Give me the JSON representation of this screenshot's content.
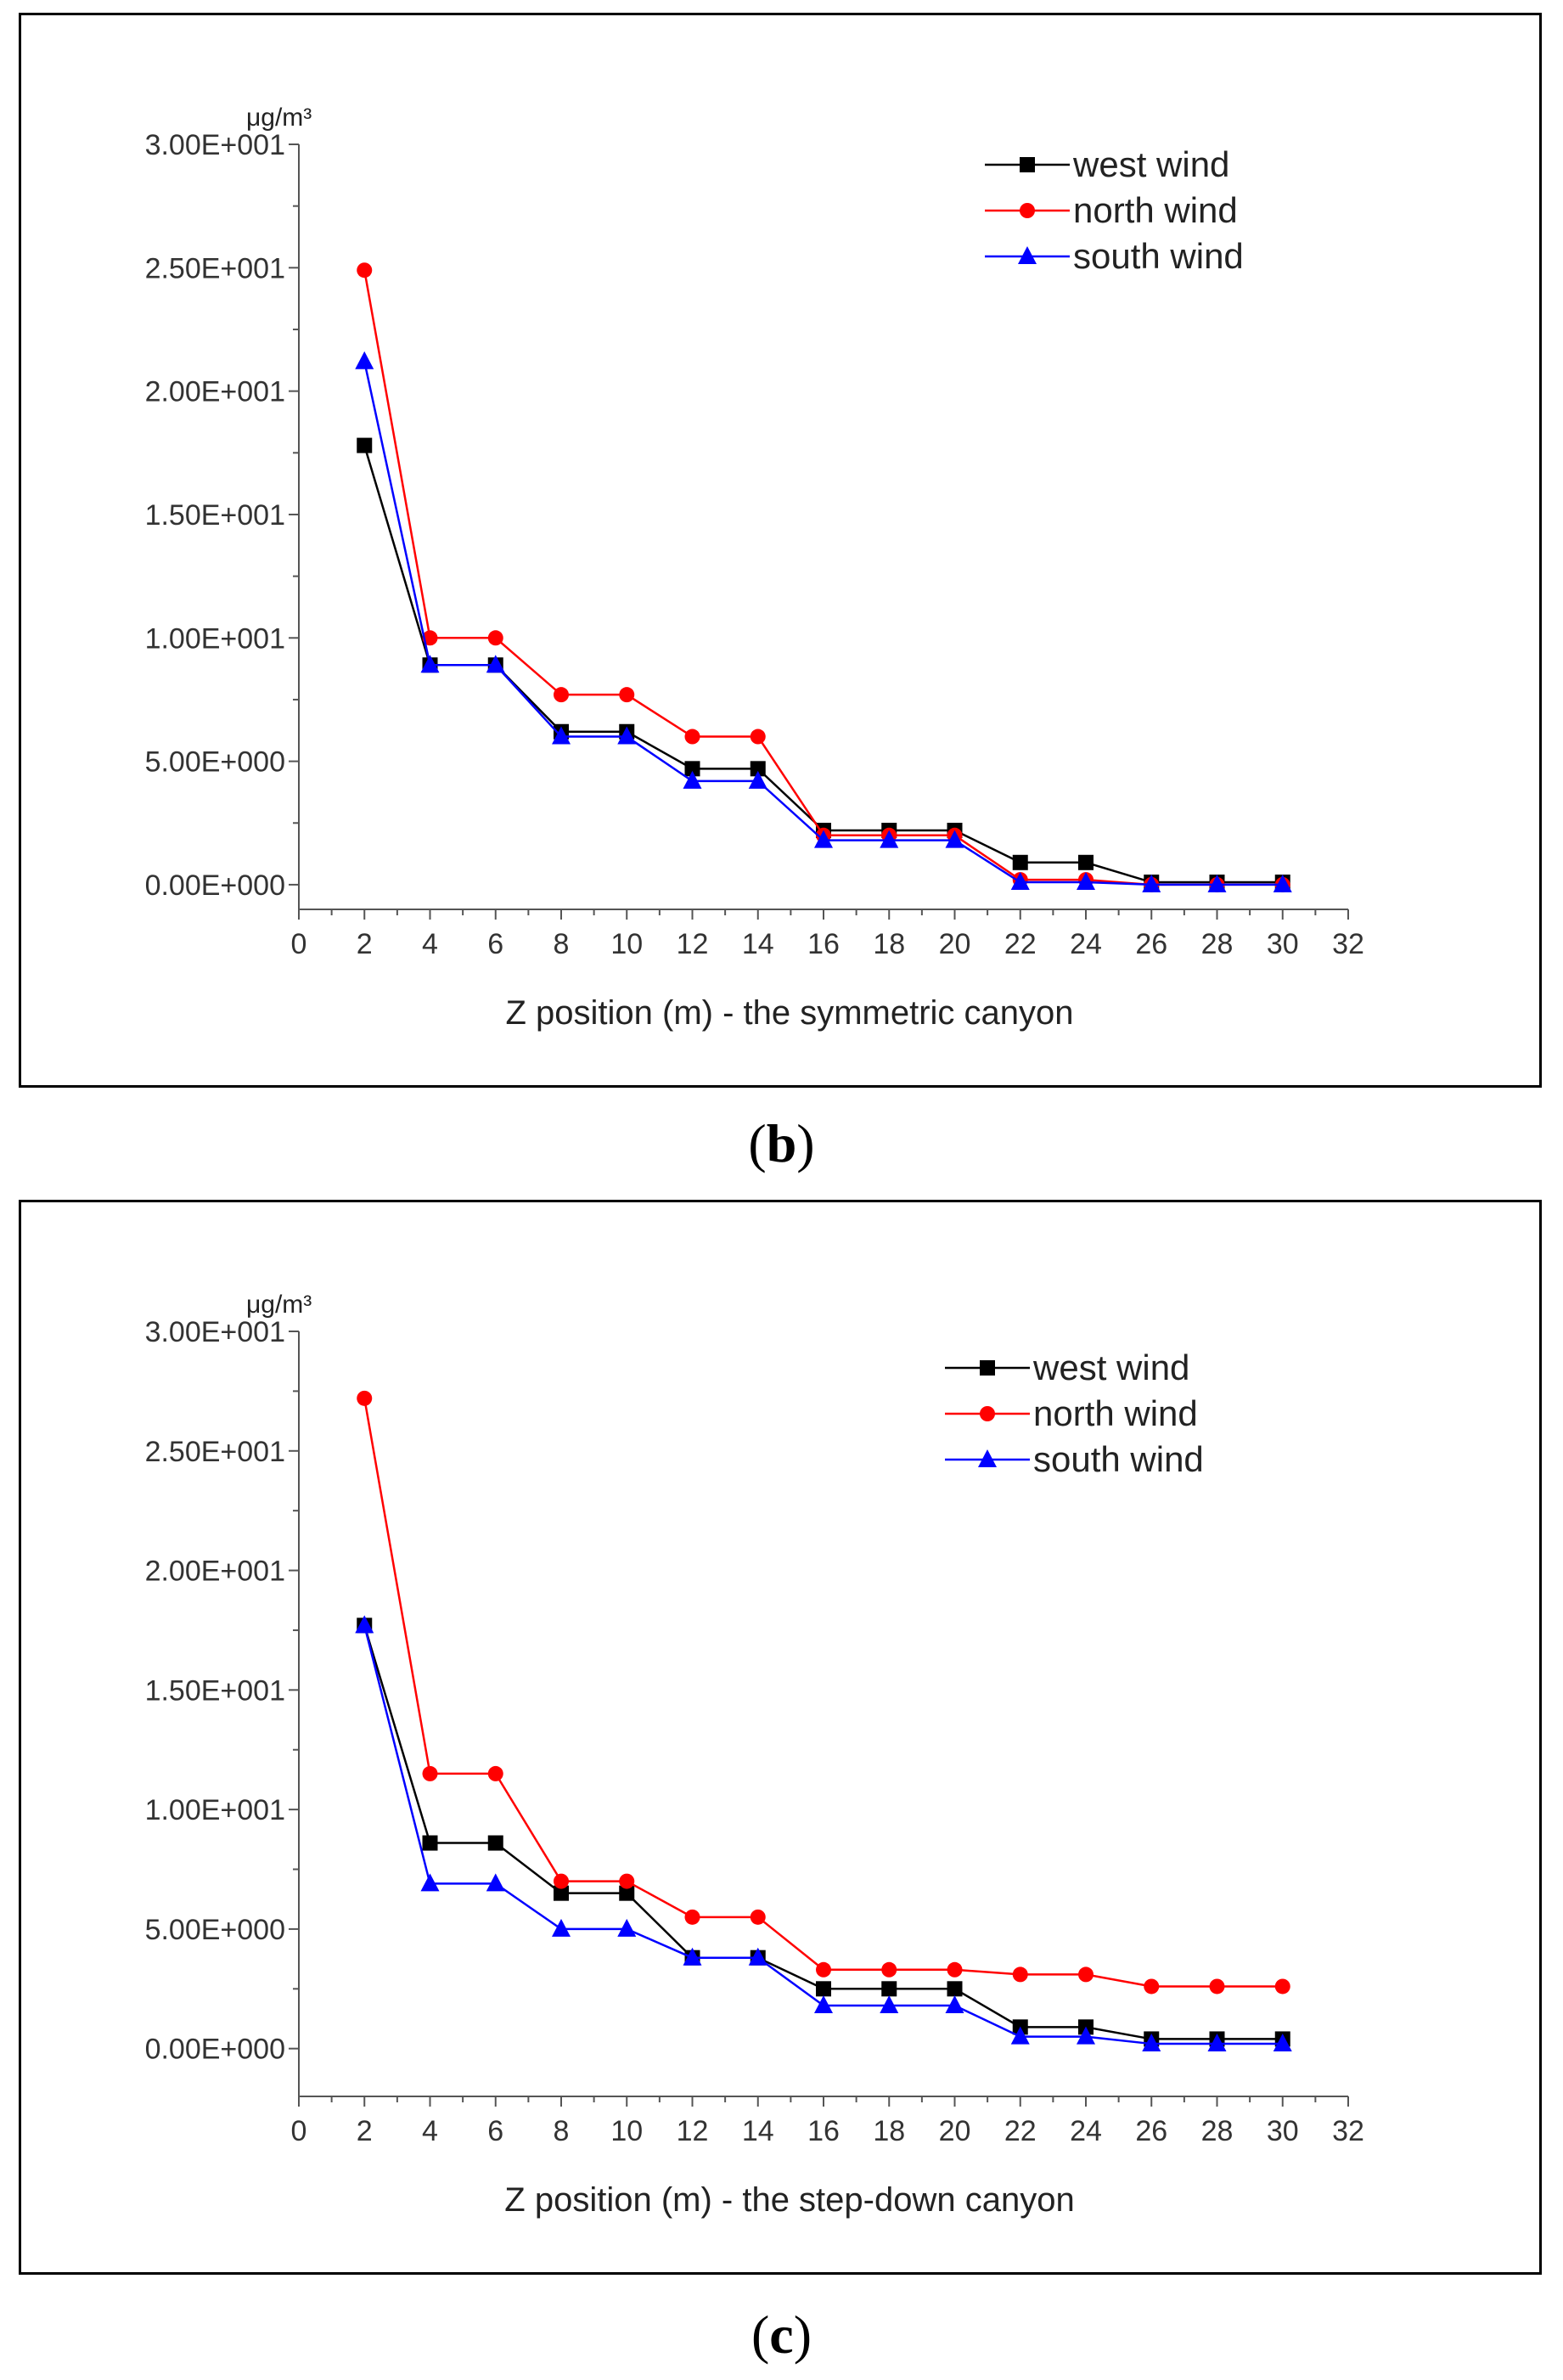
{
  "captions": {
    "b": "b",
    "c": "c"
  },
  "chart_data": [
    {
      "type": "line",
      "panel_label": "b",
      "title": "",
      "xlabel": "Z position (m) - the symmetric canyon",
      "ylabel": "μg/m³",
      "xlim": [
        0,
        32
      ],
      "ylim": [
        -1,
        30
      ],
      "xticks": [
        0,
        2,
        4,
        6,
        8,
        10,
        12,
        14,
        16,
        18,
        20,
        22,
        24,
        26,
        28,
        30,
        32
      ],
      "yticks": [
        0,
        5,
        10,
        15,
        20,
        25,
        30
      ],
      "ytick_labels": [
        "0.00E+000",
        "5.00E+000",
        "1.00E+001",
        "1.50E+001",
        "2.00E+001",
        "2.50E+001",
        "3.00E+001"
      ],
      "legend_position": "top-right",
      "x": [
        2,
        4,
        6,
        8,
        10,
        12,
        14,
        16,
        18,
        20,
        22,
        24,
        26,
        28,
        30
      ],
      "series": [
        {
          "name": "west wind",
          "marker": "square",
          "color": "#000000",
          "values": [
            17.8,
            8.9,
            8.9,
            6.2,
            6.2,
            4.7,
            4.7,
            2.2,
            2.2,
            2.2,
            0.9,
            0.9,
            0.1,
            0.1,
            0.1
          ]
        },
        {
          "name": "north wind",
          "marker": "circle",
          "color": "#ff0000",
          "values": [
            24.9,
            10.0,
            10.0,
            7.7,
            7.7,
            6.0,
            6.0,
            2.0,
            2.0,
            2.0,
            0.2,
            0.2,
            0.0,
            0.0,
            0.0
          ]
        },
        {
          "name": "south wind",
          "marker": "triangle",
          "color": "#0000ff",
          "values": [
            21.2,
            8.9,
            8.9,
            6.0,
            6.0,
            4.2,
            4.2,
            1.8,
            1.8,
            1.8,
            0.1,
            0.1,
            0.0,
            0.0,
            0.0
          ]
        }
      ]
    },
    {
      "type": "line",
      "panel_label": "c",
      "title": "",
      "xlabel": "Z position (m) - the step-down canyon",
      "ylabel": "μg/m³",
      "xlim": [
        0,
        32
      ],
      "ylim": [
        -2,
        30
      ],
      "xticks": [
        0,
        2,
        4,
        6,
        8,
        10,
        12,
        14,
        16,
        18,
        20,
        22,
        24,
        26,
        28,
        30,
        32
      ],
      "yticks": [
        0,
        5,
        10,
        15,
        20,
        25,
        30
      ],
      "ytick_labels": [
        "0.00E+000",
        "5.00E+000",
        "1.00E+001",
        "1.50E+001",
        "2.00E+001",
        "2.50E+001",
        "3.00E+001"
      ],
      "legend_position": "top-right",
      "x": [
        2,
        4,
        6,
        8,
        10,
        12,
        14,
        16,
        18,
        20,
        22,
        24,
        26,
        28,
        30
      ],
      "series": [
        {
          "name": "west wind",
          "marker": "square",
          "color": "#000000",
          "values": [
            17.7,
            8.6,
            8.6,
            6.5,
            6.5,
            3.8,
            3.8,
            2.5,
            2.5,
            2.5,
            0.9,
            0.9,
            0.4,
            0.4,
            0.4
          ]
        },
        {
          "name": "north wind",
          "marker": "circle",
          "color": "#ff0000",
          "values": [
            27.2,
            11.5,
            11.5,
            7.0,
            7.0,
            5.5,
            5.5,
            3.3,
            3.3,
            3.3,
            3.1,
            3.1,
            2.6,
            2.6,
            2.6
          ]
        },
        {
          "name": "south wind",
          "marker": "triangle",
          "color": "#0000ff",
          "values": [
            17.7,
            6.9,
            6.9,
            5.0,
            5.0,
            3.8,
            3.8,
            1.8,
            1.8,
            1.8,
            0.5,
            0.5,
            0.2,
            0.2,
            0.2
          ]
        }
      ]
    }
  ]
}
